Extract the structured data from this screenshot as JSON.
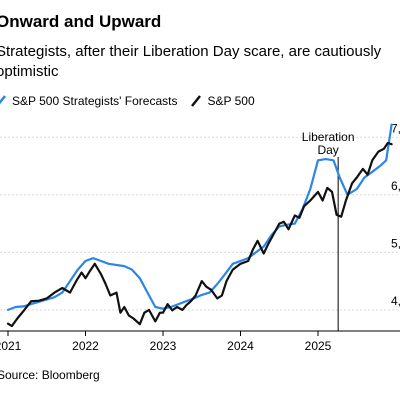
{
  "chart_data": {
    "type": "line",
    "title": "Onward and Upward",
    "subtitle": "Strategists, after their Liberation Day scare, are cautiously optimistic",
    "source": "Source: Bloomberg",
    "x_ticks": [
      "2021",
      "2022",
      "2023",
      "2024",
      "2025"
    ],
    "y_ticks": [
      "7,",
      "6,",
      "5,",
      "4,"
    ],
    "xlim": [
      2021,
      2025.95
    ],
    "ylim": [
      3650,
      7300
    ],
    "annotation": {
      "label_line1": "Liberation",
      "label_line2": "Day",
      "x": 2025.26
    },
    "grid": "horizontal",
    "series": [
      {
        "name": "S&P 500 Strategists' Forecasts",
        "color": "#2b86e8",
        "x": [
          2021.0,
          2021.1,
          2021.2,
          2021.3,
          2021.4,
          2021.5,
          2021.6,
          2021.7,
          2021.8,
          2021.9,
          2022.0,
          2022.1,
          2022.2,
          2022.3,
          2022.4,
          2022.5,
          2022.6,
          2022.7,
          2022.8,
          2022.9,
          2023.0,
          2023.1,
          2023.2,
          2023.3,
          2023.4,
          2023.5,
          2023.6,
          2023.7,
          2023.8,
          2023.9,
          2024.0,
          2024.1,
          2024.2,
          2024.3,
          2024.4,
          2024.5,
          2024.6,
          2024.7,
          2024.8,
          2024.9,
          2025.0,
          2025.1,
          2025.2,
          2025.28,
          2025.38,
          2025.5,
          2025.6,
          2025.7,
          2025.8,
          2025.88,
          2025.95
        ],
        "y": [
          4000,
          4050,
          4060,
          4100,
          4140,
          4180,
          4220,
          4300,
          4500,
          4700,
          4850,
          4900,
          4850,
          4800,
          4780,
          4760,
          4700,
          4550,
          4300,
          4050,
          4020,
          4050,
          4100,
          4150,
          4200,
          4260,
          4300,
          4450,
          4620,
          4800,
          4850,
          4900,
          5000,
          5100,
          5300,
          5450,
          5480,
          5500,
          5750,
          6100,
          6600,
          6620,
          6600,
          6300,
          6000,
          6100,
          6300,
          6400,
          6500,
          6600,
          7220
        ]
      },
      {
        "name": "S&P 500",
        "color": "#111111",
        "x": [
          2021.0,
          2021.05,
          2021.12,
          2021.2,
          2021.3,
          2021.4,
          2021.5,
          2021.6,
          2021.7,
          2021.8,
          2021.88,
          2021.95,
          2022.0,
          2022.06,
          2022.12,
          2022.2,
          2022.26,
          2022.32,
          2022.4,
          2022.45,
          2022.5,
          2022.56,
          2022.62,
          2022.7,
          2022.76,
          2022.82,
          2022.9,
          2022.96,
          2023.0,
          2023.06,
          2023.12,
          2023.18,
          2023.25,
          2023.3,
          2023.36,
          2023.42,
          2023.5,
          2023.56,
          2023.62,
          2023.7,
          2023.76,
          2023.82,
          2023.9,
          2024.0,
          2024.1,
          2024.16,
          2024.22,
          2024.3,
          2024.36,
          2024.42,
          2024.5,
          2024.56,
          2024.62,
          2024.7,
          2024.76,
          2024.82,
          2024.9,
          2025.0,
          2025.06,
          2025.12,
          2025.18,
          2025.24,
          2025.3,
          2025.36,
          2025.44,
          2025.5,
          2025.58,
          2025.64,
          2025.7,
          2025.78,
          2025.85,
          2025.9,
          2025.95
        ],
        "y": [
          3760,
          3720,
          3850,
          3980,
          4150,
          4160,
          4200,
          4300,
          4380,
          4300,
          4500,
          4650,
          4550,
          4680,
          4800,
          4620,
          4450,
          4250,
          4300,
          3950,
          4050,
          3900,
          3850,
          3750,
          3950,
          4000,
          3800,
          3950,
          3950,
          4100,
          3990,
          4050,
          4000,
          4080,
          4150,
          4250,
          4500,
          4400,
          4350,
          4200,
          4250,
          4500,
          4700,
          4800,
          4850,
          5050,
          5200,
          4980,
          5150,
          5300,
          5500,
          5530,
          5400,
          5640,
          5600,
          5800,
          5900,
          6050,
          5900,
          6120,
          6050,
          5650,
          5620,
          5900,
          6200,
          6300,
          6450,
          6350,
          6600,
          6750,
          6800,
          6900,
          6880
        ]
      }
    ]
  }
}
